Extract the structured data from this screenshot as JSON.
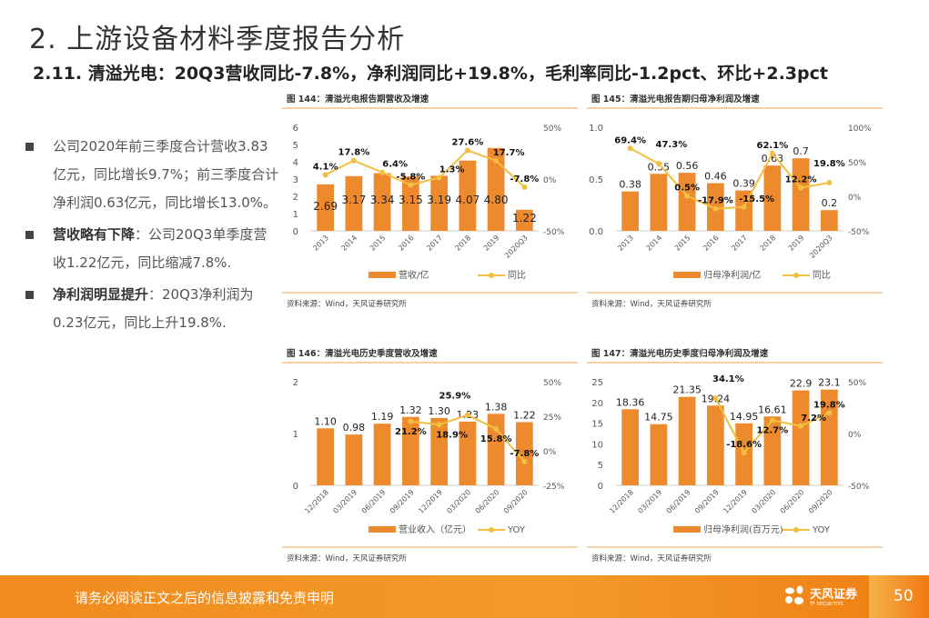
{
  "header": {
    "title": "2. 上游设备材料季度报告分析",
    "subtitle": "2.11. 清溢光电：20Q3营收同比-7.8%，净利润同比+19.8%，毛利率同比-1.2pct、环比+2.3pct"
  },
  "bullets": [
    {
      "bold": "",
      "text": "公司2020年前三季度合计营收3.83亿元，同比增长9.7%；前三季度合计净利润0.63亿元，同比增长13.0%。"
    },
    {
      "bold": "营收略有下降",
      "text": "：公司20Q3单季度营收1.22亿元，同比缩减7.8%."
    },
    {
      "bold": "净利润明显提升",
      "text": "：20Q3净利润为0.23亿元，同比上升19.8%."
    }
  ],
  "colors": {
    "bar": "#EE8A2E",
    "line": "#F2C040",
    "accent": "#F28B1E"
  },
  "chart_data": [
    {
      "type": "bar",
      "title": "图 144：清溢光电报告期营收及增速",
      "categories": [
        "2013",
        "2014",
        "2015",
        "2016",
        "2017",
        "2018",
        "2019",
        "2020Q3"
      ],
      "series": [
        {
          "name": "营收/亿",
          "axis": "left",
          "kind": "bar",
          "values": [
            2.69,
            3.17,
            3.34,
            3.15,
            3.19,
            4.07,
            4.8,
            1.22
          ],
          "labels": [
            "2.69",
            "3.17",
            "3.34",
            "3.15",
            "3.19",
            "4.07",
            "4.80",
            "1.22"
          ],
          "label_pos": "inside"
        },
        {
          "name": "同比",
          "axis": "right",
          "kind": "line",
          "values": [
            4.1,
            17.8,
            6.4,
            -5.8,
            1.3,
            27.6,
            17.7,
            -7.8
          ],
          "labels": [
            "4.1%",
            "17.8%",
            "6.4%",
            "-5.8%",
            "1.3%",
            "27.6%",
            "17.7%",
            "-7.8%"
          ]
        }
      ],
      "left_ticks": [
        "0",
        "1",
        "2",
        "3",
        "4",
        "5",
        "6"
      ],
      "ylim": [
        0,
        6
      ],
      "right_ticks": [
        "-50%",
        "0%",
        "50%"
      ],
      "y2lim": [
        -50,
        50
      ],
      "source": "资料来源：Wind，天风证券研究所"
    },
    {
      "type": "bar",
      "title": "图 145：清溢光电报告期归母净利润及增速",
      "categories": [
        "2013",
        "2014",
        "2015",
        "2016",
        "2017",
        "2018",
        "2019",
        "2020Q3"
      ],
      "series": [
        {
          "name": "归母净利润/亿",
          "axis": "left",
          "kind": "bar",
          "values": [
            0.38,
            0.55,
            0.56,
            0.46,
            0.39,
            0.63,
            0.7,
            0.2
          ],
          "labels": [
            "0.38",
            "0.55",
            "0.56",
            "0.46",
            "0.39",
            "0.63",
            "0.7",
            "0.2"
          ],
          "label_pos": "above"
        },
        {
          "name": "同比",
          "axis": "right",
          "kind": "line",
          "values": [
            69.4,
            47.3,
            0.5,
            -17.9,
            -15.5,
            62.1,
            12.2,
            19.8
          ],
          "labels": [
            "69.4%",
            "47.3%",
            "0.5%",
            "-17.9%",
            "-15.5%",
            "62.1%",
            "12.2%",
            "19.8%"
          ]
        }
      ],
      "left_ticks": [
        "0.0",
        "0.5",
        "1.0"
      ],
      "ylim": [
        0,
        1
      ],
      "right_ticks": [
        "-50%",
        "0%",
        "50%",
        "100%"
      ],
      "y2lim": [
        -50,
        100
      ],
      "source": "资料来源：Wind，天风证券研究所"
    },
    {
      "type": "bar",
      "title": "图 146：清溢光电历史季度营收及增速",
      "categories": [
        "12/2018",
        "03/2019",
        "06/2019",
        "09/2019",
        "12/2019",
        "03/2020",
        "06/2020",
        "09/2020"
      ],
      "series": [
        {
          "name": "营业收入（亿元）",
          "axis": "left",
          "kind": "bar",
          "values": [
            1.1,
            0.98,
            1.19,
            1.32,
            1.3,
            1.23,
            1.38,
            1.22
          ],
          "labels": [
            "1.10",
            "0.98",
            "1.19",
            "1.32",
            "1.30",
            "1.23",
            "1.38",
            "1.22"
          ],
          "label_pos": "above"
        },
        {
          "name": "YOY",
          "axis": "right",
          "kind": "line",
          "values": [
            null,
            null,
            null,
            21.2,
            18.9,
            25.9,
            15.8,
            -7.8
          ],
          "labels": [
            "",
            "",
            "",
            "21.2%",
            "18.9%",
            "25.9%",
            "15.8%",
            "-7.8%"
          ]
        }
      ],
      "left_ticks": [
        "0",
        "1",
        "2"
      ],
      "ylim": [
        0,
        2
      ],
      "right_ticks": [
        "-25%",
        "0%",
        "25%",
        "50%"
      ],
      "y2lim": [
        -25,
        50
      ],
      "source": "资料来源：Wind，天风证券研究所"
    },
    {
      "type": "bar",
      "title": "图 147：清溢光电历史季度归母净利润及增速",
      "categories": [
        "12/2018",
        "03/2019",
        "06/2019",
        "09/2019",
        "12/2019",
        "03/2020",
        "06/2020",
        "09/2020"
      ],
      "series": [
        {
          "name": "归母净利润(百万元)",
          "axis": "left",
          "kind": "bar",
          "values": [
            18.36,
            14.75,
            21.35,
            19.24,
            14.95,
            16.61,
            22.9,
            23.1
          ],
          "labels": [
            "18.36",
            "14.75",
            "21.35",
            "19.24",
            "14.95",
            "16.61",
            "22.9",
            "23.1"
          ],
          "label_pos": "above"
        },
        {
          "name": "YOY",
          "axis": "right",
          "kind": "line",
          "values": [
            null,
            null,
            null,
            34.1,
            -18.6,
            12.7,
            7.2,
            19.8
          ],
          "labels": [
            "",
            "",
            "",
            "34.1%",
            "-18.6%",
            "12.7%",
            "7.2%",
            "19.8%"
          ]
        }
      ],
      "left_ticks": [
        "0",
        "5",
        "10",
        "15",
        "20",
        "25"
      ],
      "ylim": [
        0,
        25
      ],
      "right_ticks": [
        "-50%",
        "0%",
        "50%"
      ],
      "y2lim": [
        -50,
        50
      ],
      "source": "资料来源：Wind，天风证券研究所"
    }
  ],
  "footer": {
    "disclaimer": "请务必阅读正文之后的信息披露和免责申明",
    "logo_text": "天风证券",
    "logo_sub": "TF SECURITIES",
    "page": "50"
  }
}
